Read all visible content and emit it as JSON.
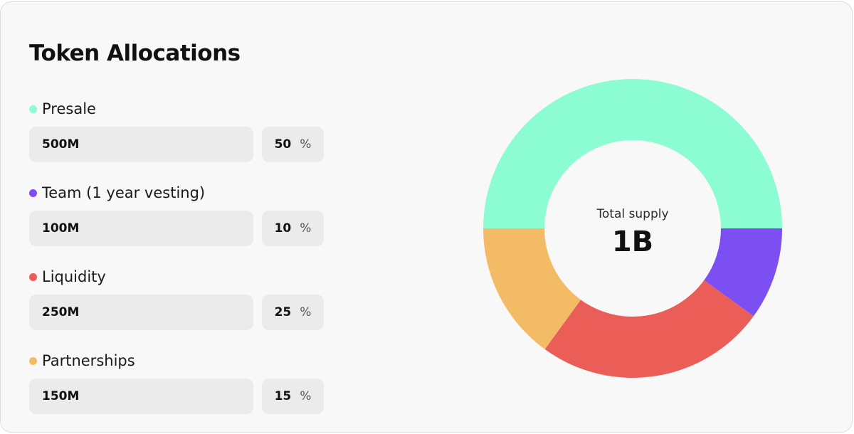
{
  "title": "Token Allocations",
  "allocations": [
    {
      "label": "Presale",
      "amount": "500M",
      "percent": "50",
      "percent_sign": "%",
      "color": "#8cfcd2"
    },
    {
      "label": "Team (1 year vesting)",
      "amount": "100M",
      "percent": "10",
      "percent_sign": "%",
      "color": "#7b4ff2"
    },
    {
      "label": "Liquidity",
      "amount": "250M",
      "percent": "25",
      "percent_sign": "%",
      "color": "#eb5e57"
    },
    {
      "label": "Partnerships",
      "amount": "150M",
      "percent": "15",
      "percent_sign": "%",
      "color": "#f3bb66"
    }
  ],
  "chart_data": {
    "type": "pie",
    "variant": "donut",
    "categories": [
      "Presale",
      "Team (1 year vesting)",
      "Liquidity",
      "Partnerships"
    ],
    "values": [
      50,
      10,
      25,
      15
    ],
    "colors": [
      "#8cfcd2",
      "#7b4ff2",
      "#eb5e57",
      "#f3bb66"
    ],
    "center_label": "Total supply",
    "center_value": "1B"
  }
}
